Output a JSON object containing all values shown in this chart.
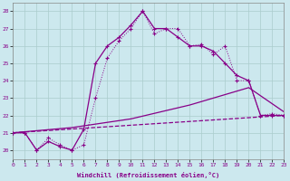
{
  "background_color": "#cce8ee",
  "grid_color": "#aacccc",
  "line_color": "#880088",
  "xlabel": "Windchill (Refroidissement éolien,°C)",
  "xlim": [
    0,
    23
  ],
  "ylim": [
    19.5,
    28.5
  ],
  "yticks": [
    20,
    21,
    22,
    23,
    24,
    25,
    26,
    27,
    28
  ],
  "xticks": [
    0,
    1,
    2,
    3,
    4,
    5,
    6,
    7,
    8,
    9,
    10,
    11,
    12,
    13,
    14,
    15,
    16,
    17,
    18,
    19,
    20,
    21,
    22,
    23
  ],
  "line1_x": [
    0,
    1,
    2,
    3,
    4,
    5,
    6,
    7,
    8,
    9,
    10,
    11,
    12,
    13,
    14,
    15,
    16,
    17,
    18,
    19,
    20,
    21,
    22,
    23
  ],
  "line1_y": [
    21.0,
    21.0,
    20.0,
    20.7,
    20.3,
    20.0,
    20.3,
    23.0,
    25.3,
    26.3,
    27.0,
    28.0,
    26.7,
    27.0,
    27.0,
    26.0,
    26.1,
    25.5,
    26.0,
    24.0,
    24.0,
    22.0,
    22.1,
    22.0
  ],
  "line2_x": [
    0,
    1,
    2,
    3,
    4,
    5,
    6,
    7,
    8,
    9,
    10,
    11,
    12,
    13,
    14,
    15,
    16,
    17,
    18,
    19,
    20,
    21,
    22,
    23
  ],
  "line2_y": [
    21.0,
    21.0,
    20.0,
    20.5,
    20.2,
    20.0,
    21.2,
    25.0,
    26.0,
    26.5,
    27.2,
    28.0,
    27.0,
    27.0,
    26.5,
    26.0,
    26.0,
    25.7,
    25.0,
    24.3,
    24.0,
    22.0,
    22.0,
    22.0
  ],
  "line3_x": [
    0,
    23
  ],
  "line3_y": [
    21.0,
    22.0
  ],
  "line4_x": [
    0,
    5,
    10,
    15,
    20,
    23
  ],
  "line4_y": [
    21.0,
    21.3,
    21.8,
    22.6,
    23.6,
    22.2
  ]
}
